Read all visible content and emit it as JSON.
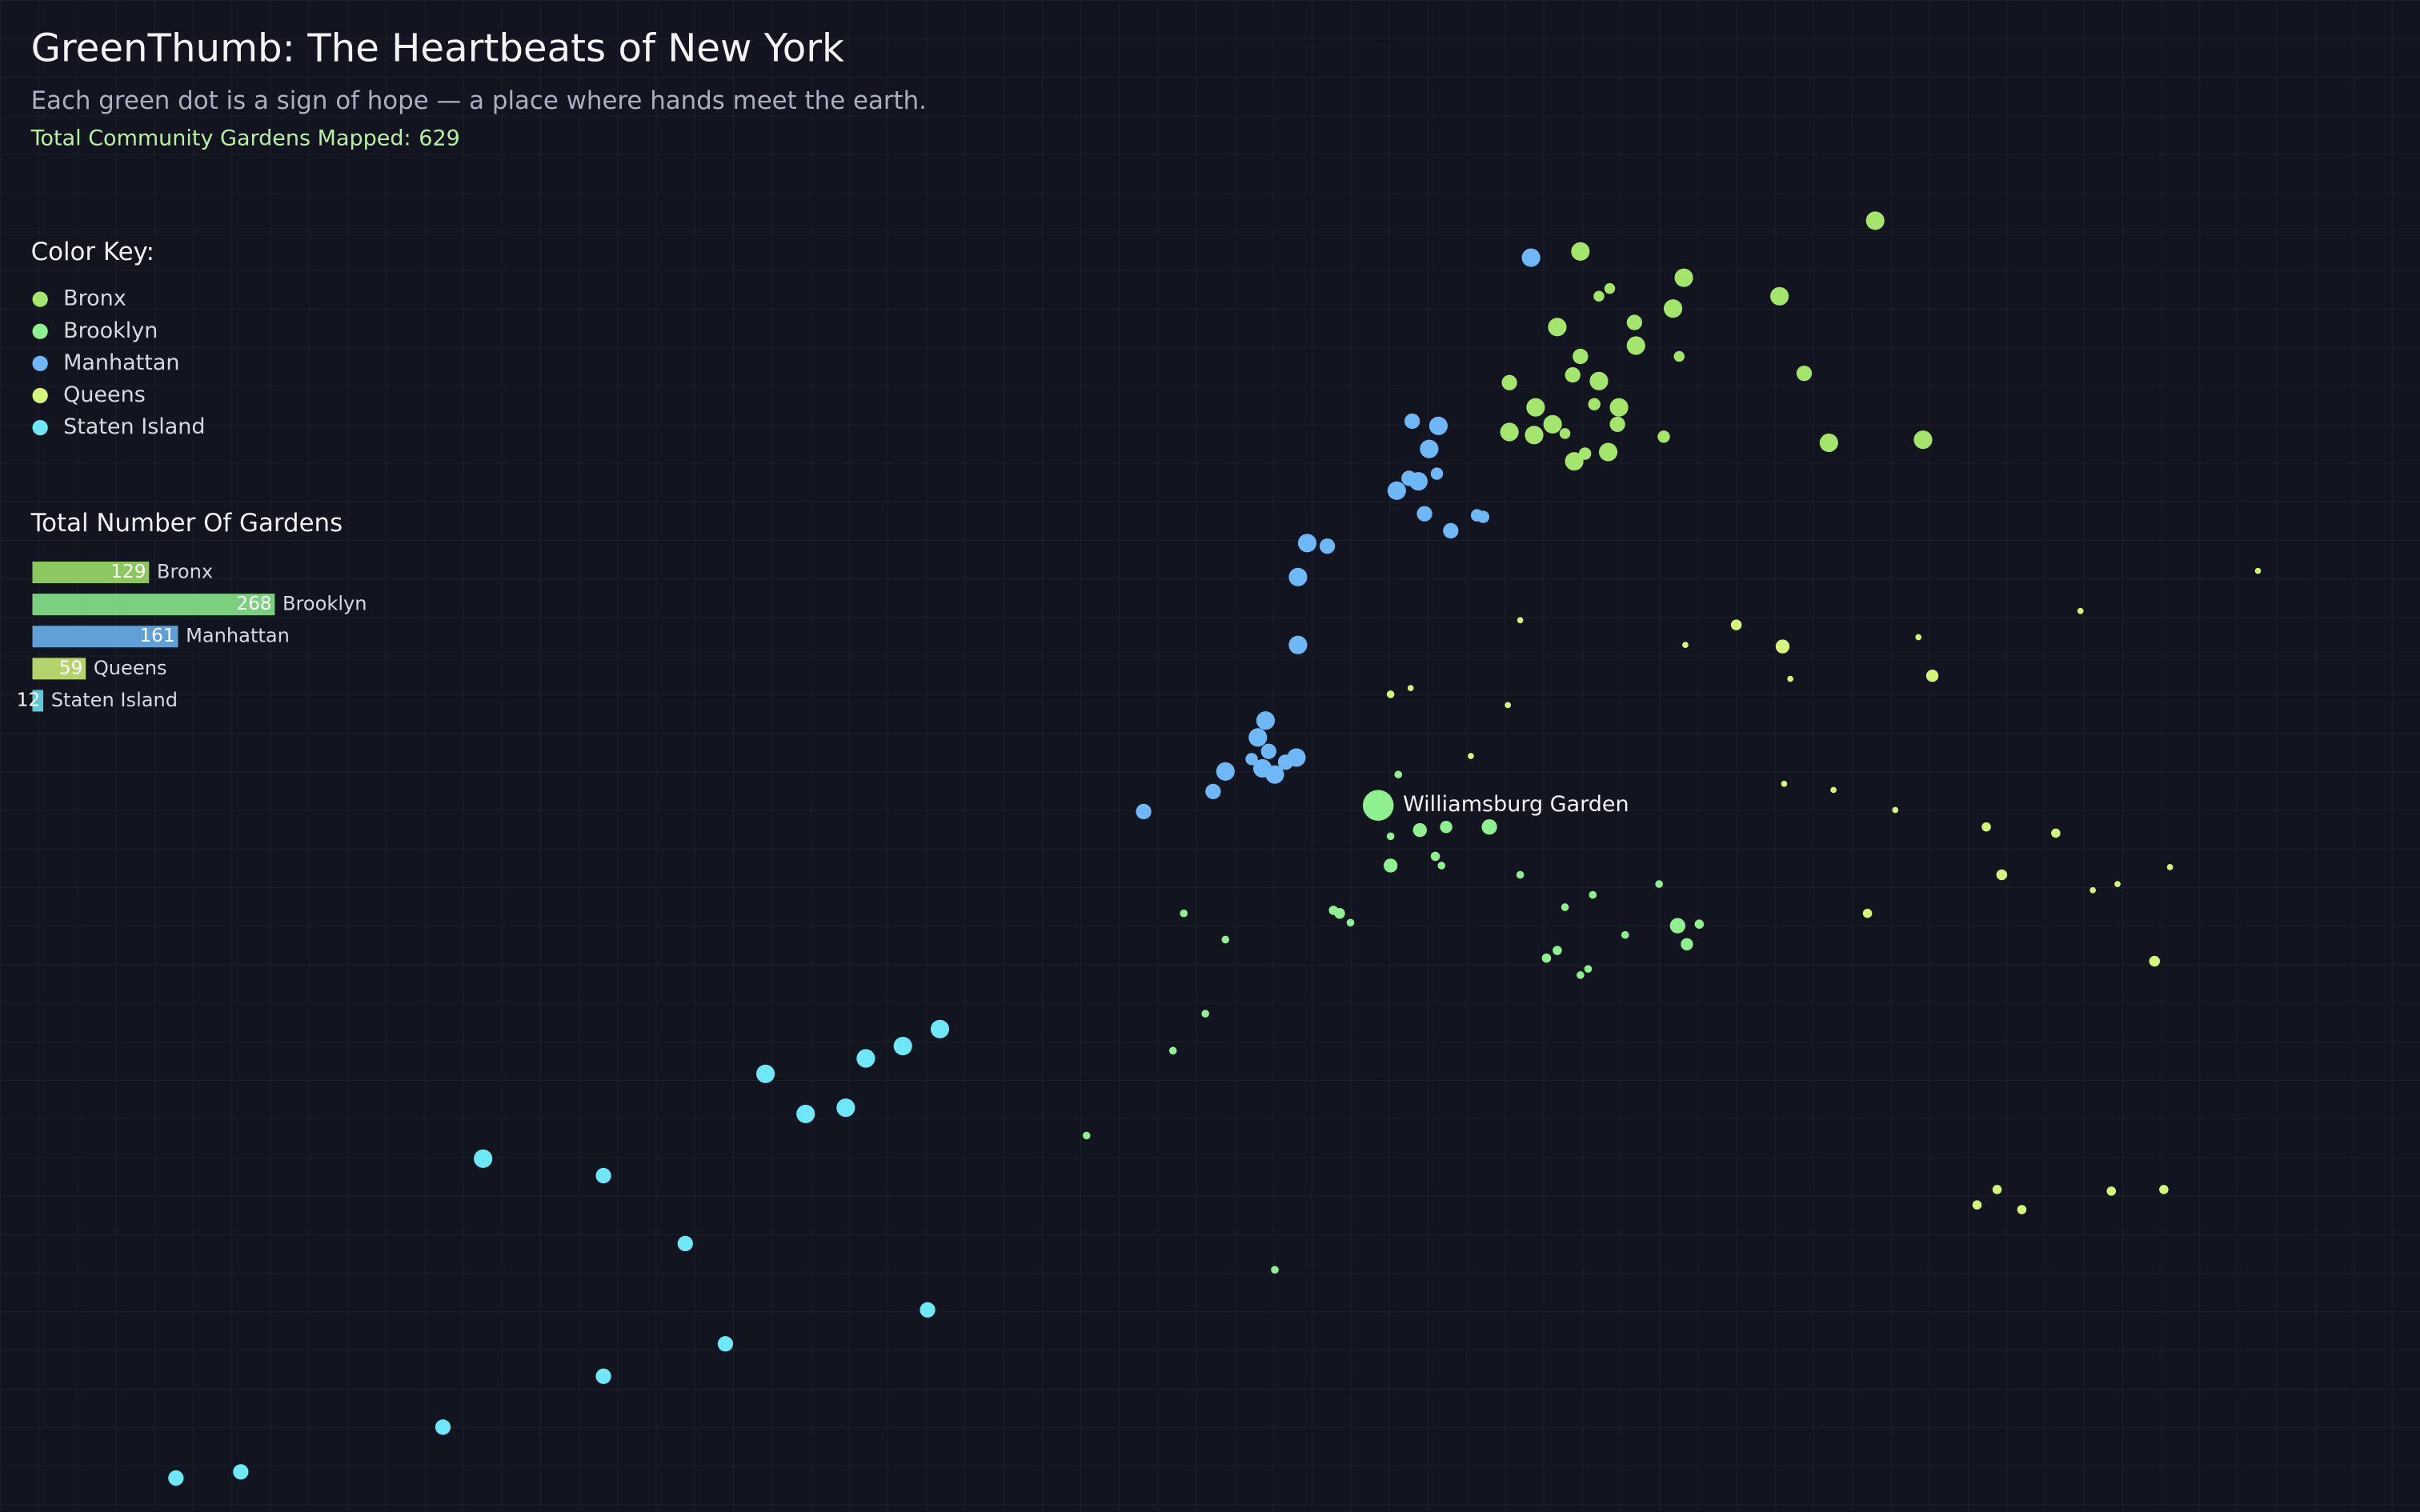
{
  "header": {
    "title": "GreenThumb: The Heartbeats of New York",
    "subtitle": "Each green dot is a sign of hope — a place where hands meet the earth.",
    "total": {
      "label": "Total Community Gardens Mapped:",
      "value": 629
    }
  },
  "legend_title": "Color Key:",
  "bar_title": "Total Number Of Gardens",
  "boroughs": [
    {
      "name": "Bronx",
      "color": "#a3e66b",
      "count": 129,
      "points": [
        [
          -73.788,
          40.8685,
          6
        ],
        [
          -73.6925,
          40.8785,
          6
        ],
        [
          -73.7785,
          40.8565,
          3.5
        ],
        [
          -73.782,
          40.854,
          3.5
        ],
        [
          -73.7545,
          40.86,
          6
        ],
        [
          -73.758,
          40.85,
          6
        ],
        [
          -73.7235,
          40.854,
          6
        ],
        [
          -73.7955,
          40.844,
          6
        ],
        [
          -73.7705,
          40.8455,
          5
        ],
        [
          -73.77,
          40.838,
          6
        ],
        [
          -73.756,
          40.8345,
          3.5
        ],
        [
          -73.788,
          40.8345,
          5
        ],
        [
          -73.782,
          40.8265,
          6
        ],
        [
          -73.7905,
          40.8285,
          5
        ],
        [
          -73.811,
          40.826,
          5
        ],
        [
          -73.7155,
          40.829,
          5
        ],
        [
          -73.8025,
          40.818,
          6
        ],
        [
          -73.7835,
          40.819,
          4
        ],
        [
          -73.7755,
          40.818,
          6
        ],
        [
          -73.797,
          40.8125,
          6
        ],
        [
          -73.793,
          40.8095,
          3.5
        ],
        [
          -73.776,
          40.8125,
          5
        ],
        [
          -73.811,
          40.81,
          6
        ],
        [
          -73.803,
          40.809,
          6
        ],
        [
          -73.7865,
          40.803,
          4
        ],
        [
          -73.779,
          40.8035,
          6
        ],
        [
          -73.79,
          40.8005,
          6
        ],
        [
          -73.761,
          40.8085,
          4
        ],
        [
          -73.7075,
          40.8065,
          6
        ],
        [
          -73.677,
          40.8075,
          6
        ]
      ]
    },
    {
      "name": "Brooklyn",
      "color": "#8ef08f",
      "count": 268,
      "featured": {
        "name": "Williamsburg Garden",
        "lon": -73.8535,
        "lat": 40.689,
        "size": 10
      },
      "points": [
        [
          -73.84,
          40.681,
          4.5
        ],
        [
          -73.8315,
          40.682,
          4
        ],
        [
          -73.8175,
          40.682,
          5
        ],
        [
          -73.8495,
          40.679,
          2.5
        ],
        [
          -73.847,
          40.699,
          2.5
        ],
        [
          -73.835,
          40.6725,
          3
        ],
        [
          -73.833,
          40.6695,
          2.5
        ],
        [
          -73.8495,
          40.6695,
          4.5
        ],
        [
          -73.8075,
          40.6665,
          2.5
        ],
        [
          -73.793,
          40.656,
          2.5
        ],
        [
          -73.784,
          40.66,
          2.5
        ],
        [
          -73.7625,
          40.6635,
          2.5
        ],
        [
          -73.7565,
          40.65,
          5
        ],
        [
          -73.7495,
          40.6505,
          3
        ],
        [
          -73.7535,
          40.644,
          4
        ],
        [
          -73.7735,
          40.647,
          2.5
        ],
        [
          -73.7955,
          40.642,
          3
        ],
        [
          -73.799,
          40.6395,
          3
        ],
        [
          -73.7855,
          40.636,
          2.5
        ],
        [
          -73.788,
          40.634,
          2.5
        ],
        [
          -73.868,
          40.655,
          3
        ],
        [
          -73.866,
          40.654,
          3.5
        ],
        [
          -73.8625,
          40.651,
          2.5
        ],
        [
          -73.9165,
          40.654,
          2.5
        ],
        [
          -73.903,
          40.6455,
          2.5
        ],
        [
          -73.9095,
          40.6215,
          2.5
        ],
        [
          -73.92,
          40.6095,
          2.5
        ],
        [
          -73.948,
          40.582,
          2.5
        ],
        [
          -73.887,
          40.5385,
          2.5
        ]
      ]
    },
    {
      "name": "Manhattan",
      "color": "#6fb8f7",
      "count": 161,
      "points": [
        [
          -73.804,
          40.8665,
          6
        ],
        [
          -73.8425,
          40.8135,
          5
        ],
        [
          -73.834,
          40.812,
          6
        ],
        [
          -73.837,
          40.8045,
          6
        ],
        [
          -73.8435,
          40.795,
          5
        ],
        [
          -73.8405,
          40.794,
          6
        ],
        [
          -73.8345,
          40.7965,
          4
        ],
        [
          -73.8475,
          40.791,
          6
        ],
        [
          -73.8385,
          40.7835,
          5
        ],
        [
          -73.83,
          40.778,
          5
        ],
        [
          -73.8215,
          40.783,
          4
        ],
        [
          -73.8195,
          40.7825,
          4
        ],
        [
          -73.8765,
          40.774,
          6
        ],
        [
          -73.87,
          40.773,
          5
        ],
        [
          -73.8795,
          40.763,
          6
        ],
        [
          -73.8795,
          40.741,
          6
        ],
        [
          -73.89,
          40.7165,
          6
        ],
        [
          -73.8925,
          40.711,
          6
        ],
        [
          -73.889,
          40.7065,
          5
        ],
        [
          -73.8945,
          40.704,
          4
        ],
        [
          -73.891,
          40.701,
          6
        ],
        [
          -73.887,
          40.699,
          6
        ],
        [
          -73.8835,
          40.703,
          5
        ],
        [
          -73.88,
          40.7045,
          6
        ],
        [
          -73.903,
          40.7,
          6
        ],
        [
          -73.907,
          40.6935,
          5
        ],
        [
          -73.9295,
          40.687,
          5
        ]
      ]
    },
    {
      "name": "Queens",
      "color": "#d2f57a",
      "count": 59,
      "points": [
        [
          -73.8075,
          40.749,
          2
        ],
        [
          -73.754,
          40.741,
          2
        ],
        [
          -73.7375,
          40.7475,
          3.5
        ],
        [
          -73.7225,
          40.7405,
          4.5
        ],
        [
          -73.72,
          40.73,
          2
        ],
        [
          -73.6785,
          40.7435,
          2
        ],
        [
          -73.674,
          40.731,
          4
        ],
        [
          -73.626,
          40.752,
          2
        ],
        [
          -73.5685,
          40.765,
          2
        ],
        [
          -73.8495,
          40.725,
          2.5
        ],
        [
          -73.843,
          40.727,
          2
        ],
        [
          -73.8115,
          40.7215,
          2
        ],
        [
          -73.8235,
          40.705,
          2
        ],
        [
          -73.722,
          40.696,
          2
        ],
        [
          -73.706,
          40.694,
          2
        ],
        [
          -73.686,
          40.6875,
          2
        ],
        [
          -73.6565,
          40.682,
          3
        ],
        [
          -73.634,
          40.68,
          3
        ],
        [
          -73.6515,
          40.6665,
          3.5
        ],
        [
          -73.622,
          40.6615,
          2
        ],
        [
          -73.614,
          40.6635,
          2
        ],
        [
          -73.597,
          40.669,
          2
        ],
        [
          -73.695,
          40.654,
          3
        ],
        [
          -73.602,
          40.6385,
          3.5
        ],
        [
          -73.6595,
          40.5595,
          3
        ],
        [
          -73.653,
          40.5645,
          3
        ],
        [
          -73.645,
          40.558,
          3
        ],
        [
          -73.616,
          40.564,
          3
        ],
        [
          -73.599,
          40.5645,
          3
        ]
      ]
    },
    {
      "name": "Staten Island",
      "color": "#6ee7f7",
      "count": 12,
      "points": [
        [
          -73.9955,
          40.6165,
          6
        ],
        [
          -74.0075,
          40.611,
          6
        ],
        [
          -74.0195,
          40.607,
          6
        ],
        [
          -74.052,
          40.602,
          6
        ],
        [
          -74.039,
          40.589,
          6
        ],
        [
          -74.026,
          40.591,
          6
        ],
        [
          -74.1435,
          40.5745,
          6
        ],
        [
          -74.1045,
          40.569,
          5
        ],
        [
          -74.078,
          40.547,
          5
        ],
        [
          -73.9995,
          40.5255,
          5
        ],
        [
          -74.065,
          40.5145,
          5
        ],
        [
          -74.1045,
          40.504,
          5
        ],
        [
          -74.1565,
          40.4875,
          5
        ],
        [
          -74.222,
          40.473,
          5
        ],
        [
          -74.243,
          40.471,
          5
        ]
      ]
    }
  ]
}
